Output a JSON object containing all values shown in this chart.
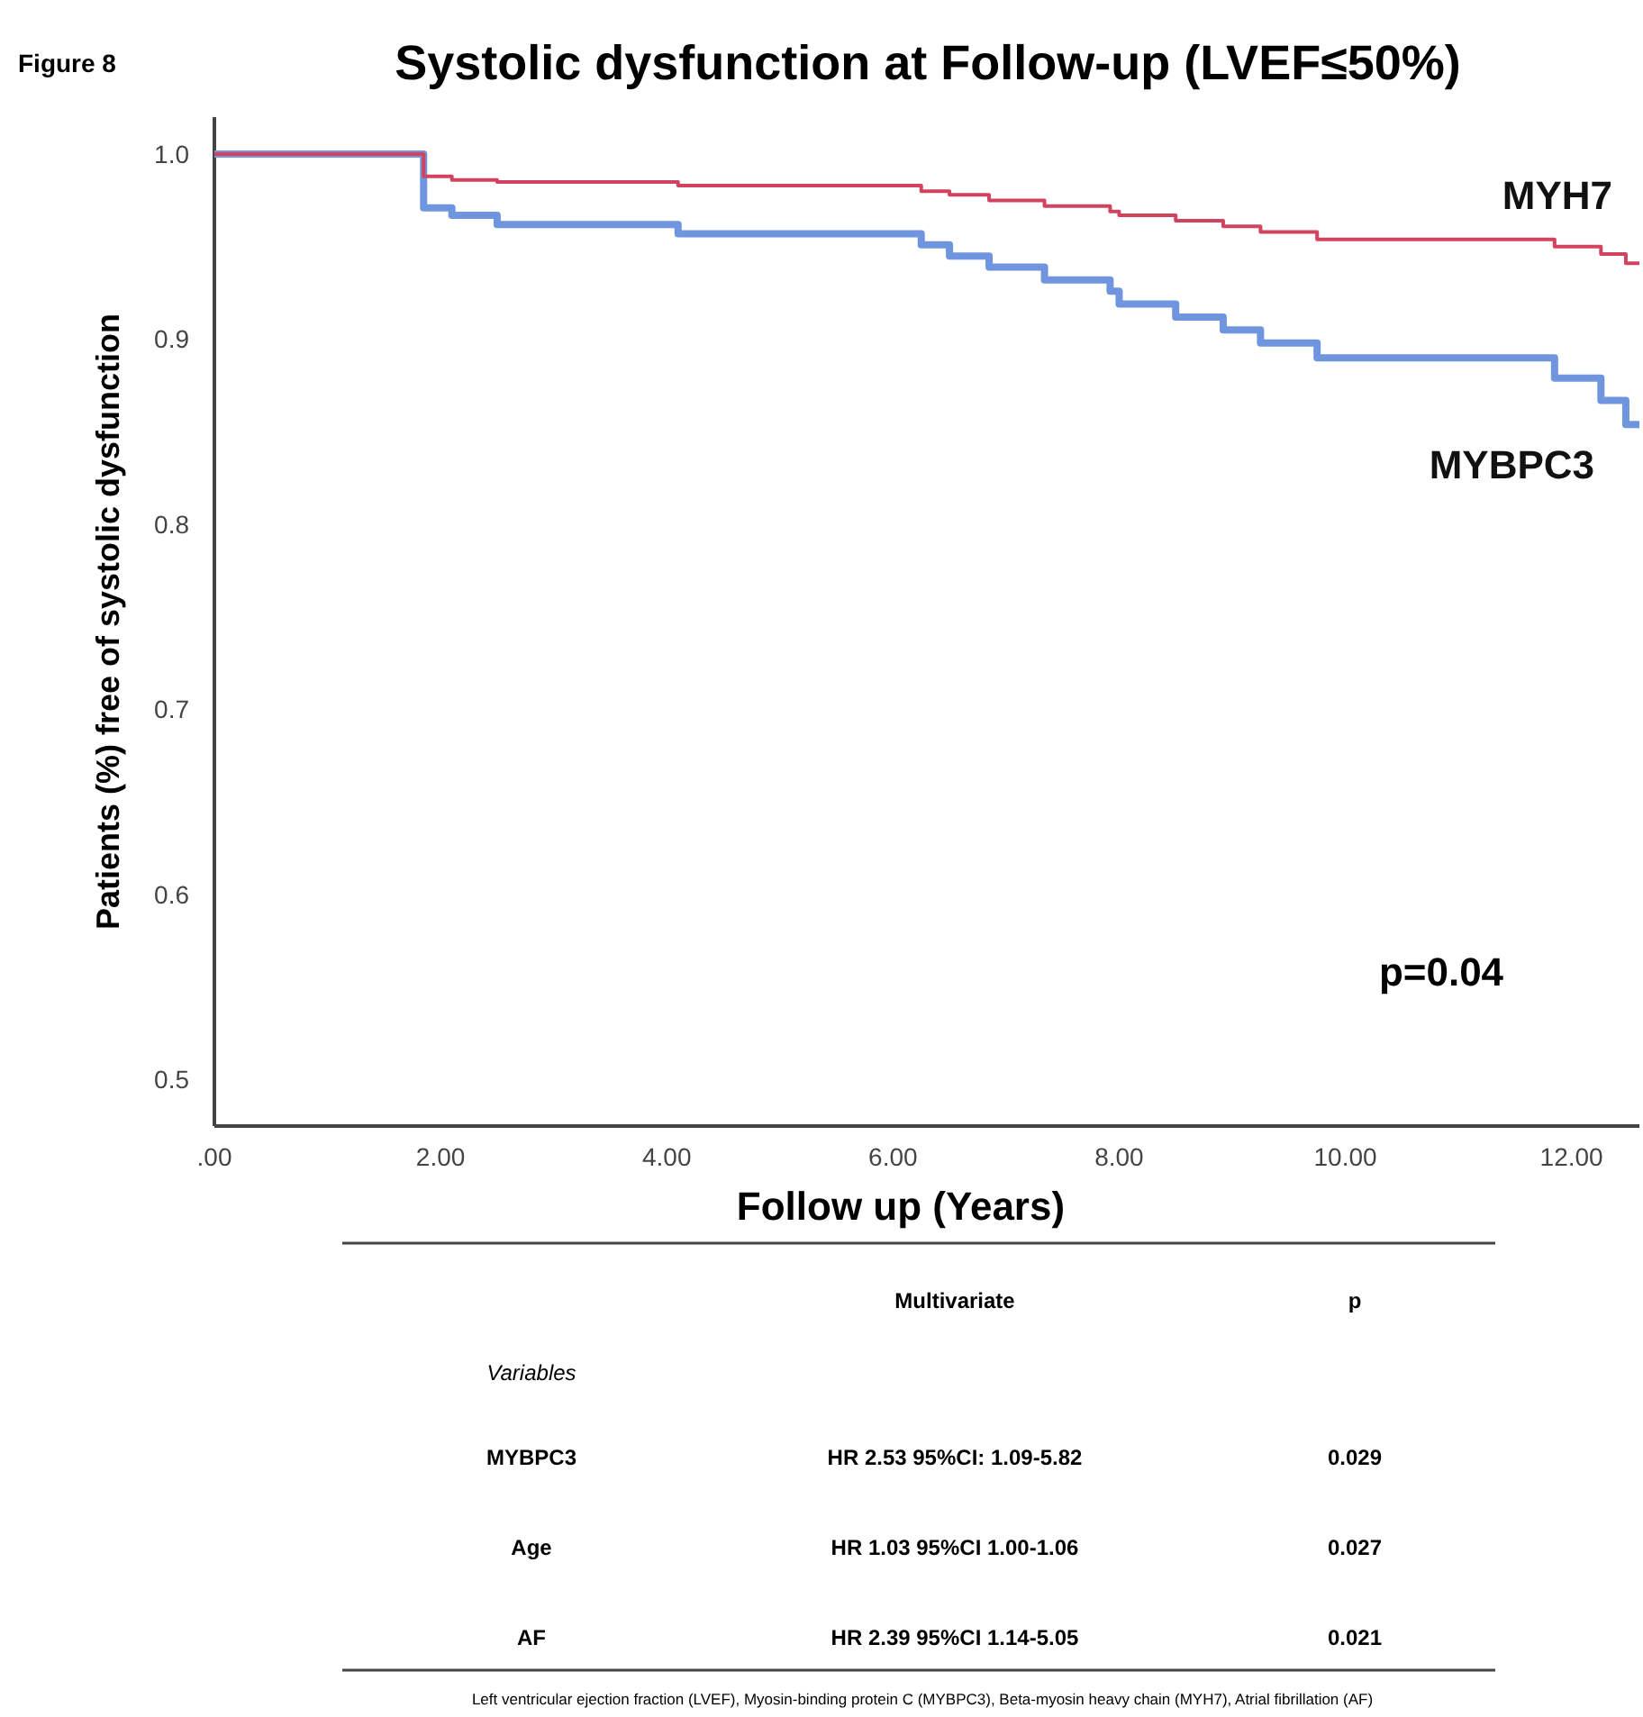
{
  "chart_data": {
    "type": "step",
    "title": "Systolic dysfunction at Follow-up (LVEF≤50%)",
    "xlabel": "Follow up (Years)",
    "ylabel": "Patients (%) free of systolic dysfunction",
    "xlim": [
      0,
      12.6
    ],
    "ylim": [
      0.475,
      1.02
    ],
    "xticks": [
      {
        "value": 0,
        "label": ".00"
      },
      {
        "value": 2,
        "label": "2.00"
      },
      {
        "value": 4,
        "label": "4.00"
      },
      {
        "value": 6,
        "label": "6.00"
      },
      {
        "value": 8,
        "label": "8.00"
      },
      {
        "value": 10,
        "label": "10.00"
      },
      {
        "value": 12,
        "label": "12.00"
      }
    ],
    "yticks": [
      {
        "value": 0.5,
        "label": "0.5"
      },
      {
        "value": 0.6,
        "label": "0.6"
      },
      {
        "value": 0.7,
        "label": "0.7"
      },
      {
        "value": 0.8,
        "label": "0.8"
      },
      {
        "value": 0.9,
        "label": "0.9"
      },
      {
        "value": 1,
        "label": "1.0"
      }
    ],
    "grid": false,
    "legend": false,
    "marker": "none",
    "series": [
      {
        "name": "MYH7",
        "color": "#d2435f",
        "x": [
          0,
          1.85,
          2.1,
          2.5,
          4.1,
          6.25,
          6.5,
          6.85,
          7.34,
          7.92,
          8.0,
          8.5,
          8.92,
          9.25,
          9.75,
          11.85,
          12.26,
          12.48,
          12.6
        ],
        "values": [
          1,
          0.988,
          0.986,
          0.985,
          0.983,
          0.98,
          0.978,
          0.975,
          0.972,
          0.969,
          0.967,
          0.964,
          0.961,
          0.958,
          0.954,
          0.95,
          0.946,
          0.941,
          0.941
        ]
      },
      {
        "name": "MYBPC3",
        "color": "#6f95df",
        "x": [
          0,
          1.85,
          2.1,
          2.5,
          4.1,
          6.25,
          6.5,
          6.85,
          7.34,
          7.92,
          8.0,
          8.5,
          8.92,
          9.25,
          9.75,
          11.85,
          12.26,
          12.48,
          12.6
        ],
        "values": [
          1,
          0.971,
          0.967,
          0.962,
          0.957,
          0.951,
          0.945,
          0.939,
          0.932,
          0.926,
          0.919,
          0.912,
          0.905,
          0.898,
          0.89,
          0.879,
          0.867,
          0.854,
          0.854
        ]
      }
    ],
    "annotations": [
      "Figure 8",
      "p=0.04",
      "Multivariate",
      "p",
      "Variables",
      "MYBPC3",
      "HR 2.53 95%CI: 1.09-5.82",
      "0.029",
      "Age",
      "HR 1.03 95%CI 1.00-1.06",
      "0.027",
      "AF",
      "HR 2.39 95%CI 1.14-5.05",
      "0.021",
      "Left ventricular ejection fraction (LVEF), Myosin-binding  protein C (MYBPC3), Beta-myosin heavy chain (MYH7), Atrial fibrillation (AF)"
    ]
  }
}
